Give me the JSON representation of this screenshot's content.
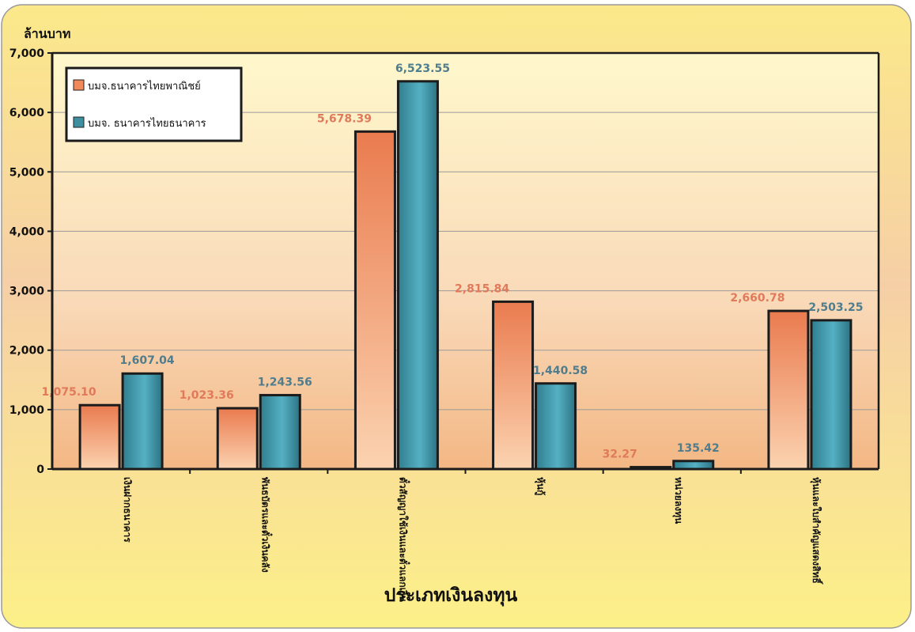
{
  "chart_data": {
    "type": "bar",
    "ylabel": "ล้านบาท",
    "xlabel": "ประเภทเงินลงทุน",
    "ylim": [
      0,
      7000
    ],
    "yticks": [
      "0",
      "1,000",
      "2,000",
      "3,000",
      "4,000",
      "5,000",
      "6,000",
      "7,000"
    ],
    "categories": [
      "เงินฝากธนาคาร",
      "พันธบัตรและตั๋วเงินคลัง",
      "ตั๋วสัญญาใช้เงินและตั๋วแลกเงิน",
      "หุ้นกู้",
      "หน่วยลงทุน",
      "หุ้นและใบสำคัญแสดงสิทธิ์"
    ],
    "series": [
      {
        "name": "บมจ.ธนาคารไทยพาณิชย์",
        "values": [
          1075.1,
          1023.36,
          5678.39,
          2815.84,
          32.27,
          2660.78
        ],
        "labels": [
          "1,075.10",
          "1,023.36",
          "5,678.39",
          "2,815.84",
          "32.27",
          "2,660.78"
        ],
        "color": "#f08a5a",
        "label_color": "#e07a5a"
      },
      {
        "name": "บมจ. ธนาคารไทยธนาคาร",
        "values": [
          1607.04,
          1243.56,
          6523.55,
          1440.58,
          135.42,
          2503.25
        ],
        "labels": [
          "1,607.04",
          "1,243.56",
          "6,523.55",
          "1,440.58",
          "135.42",
          "2,503.25"
        ],
        "color": "#3e8fa0",
        "label_color": "#4f7d8e"
      }
    ],
    "grid": true,
    "legend_position": "top-left"
  }
}
